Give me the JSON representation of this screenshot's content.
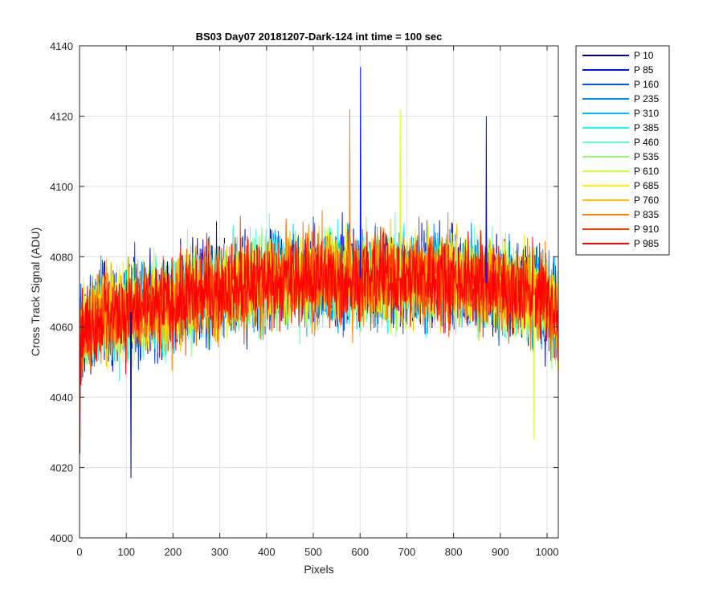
{
  "chart_data": {
    "type": "line",
    "title": "BS03 Day07 20181207-Dark-124 int time = 100 sec",
    "xlabel": "Pixels",
    "ylabel": "Cross Track Signal (ADU)",
    "xlim": [
      0,
      1024
    ],
    "ylim": [
      4000,
      4140
    ],
    "xticks": [
      0,
      100,
      200,
      300,
      400,
      500,
      600,
      700,
      800,
      900,
      1000
    ],
    "yticks": [
      4000,
      4020,
      4040,
      4060,
      4080,
      4100,
      4120,
      4140
    ],
    "grid": true,
    "legend_position": "outside-top-right",
    "x_range": [
      1,
      1024
    ],
    "profile": {
      "description_points_x": [
        1,
        50,
        100,
        200,
        300,
        400,
        500,
        600,
        700,
        800,
        900,
        1000,
        1024
      ],
      "mean_y": [
        4058,
        4064,
        4064,
        4067,
        4071,
        4073,
        4074,
        4074,
        4074,
        4074,
        4072,
        4068,
        4062
      ],
      "noise_sd": 7.5
    },
    "extremes": [
      {
        "x": 601,
        "y": 4134
      },
      {
        "x": 110,
        "y": 4017
      },
      {
        "x": 578,
        "y": 4122
      },
      {
        "x": 686,
        "y": 4122
      },
      {
        "x": 870,
        "y": 4120
      },
      {
        "x": 1,
        "y": 4024
      },
      {
        "x": 972,
        "y": 4028
      }
    ],
    "series": [
      {
        "name": "P 10",
        "color": "#00008f"
      },
      {
        "name": "P 85",
        "color": "#0010ff"
      },
      {
        "name": "P 160",
        "color": "#0050ff"
      },
      {
        "name": "P 235",
        "color": "#0090ff"
      },
      {
        "name": "P 310",
        "color": "#00bfff"
      },
      {
        "name": "P 385",
        "color": "#10ffef"
      },
      {
        "name": "P 460",
        "color": "#60ffcf"
      },
      {
        "name": "P 535",
        "color": "#8fff70"
      },
      {
        "name": "P 610",
        "color": "#cfff30"
      },
      {
        "name": "P 685",
        "color": "#ffef00"
      },
      {
        "name": "P 760",
        "color": "#ffbf00"
      },
      {
        "name": "P 835",
        "color": "#ff8000"
      },
      {
        "name": "P 910",
        "color": "#ff4000"
      },
      {
        "name": "P 985",
        "color": "#ff0000"
      }
    ]
  }
}
